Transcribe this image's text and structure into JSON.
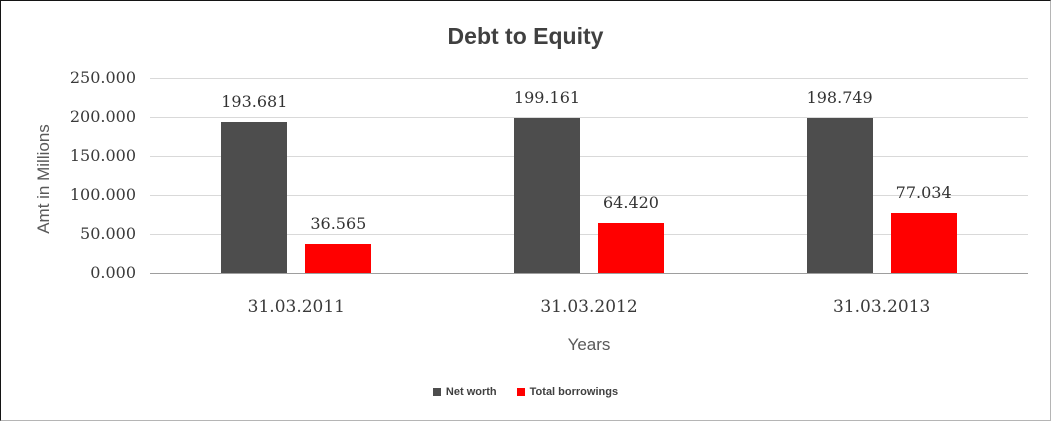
{
  "chart_data": {
    "type": "bar",
    "title": "Debt to Equity",
    "xlabel": "Years",
    "ylabel": "Amt in Millions",
    "categories": [
      "31.03.2011",
      "31.03.2012",
      "31.03.2013"
    ],
    "series": [
      {
        "name": "Net worth",
        "color": "#4d4d4d",
        "values": [
          193.681,
          199.161,
          198.749
        ],
        "value_labels": [
          "193.681",
          "199.161",
          "198.749"
        ]
      },
      {
        "name": "Total borrowings",
        "color": "#ff0000",
        "values": [
          36.565,
          64.42,
          77.034
        ],
        "value_labels": [
          "36.565",
          "64.420",
          "77.034"
        ]
      }
    ],
    "ylim": [
      0,
      250
    ],
    "ytick_step": 50,
    "ytick_labels": [
      "0.000",
      "50.000",
      "100.000",
      "150.000",
      "200.000",
      "250.000"
    ],
    "grid": true,
    "legend_position": "bottom",
    "gridline_color": "#d9d9d9",
    "baseline_color": "#9e9e9e"
  }
}
